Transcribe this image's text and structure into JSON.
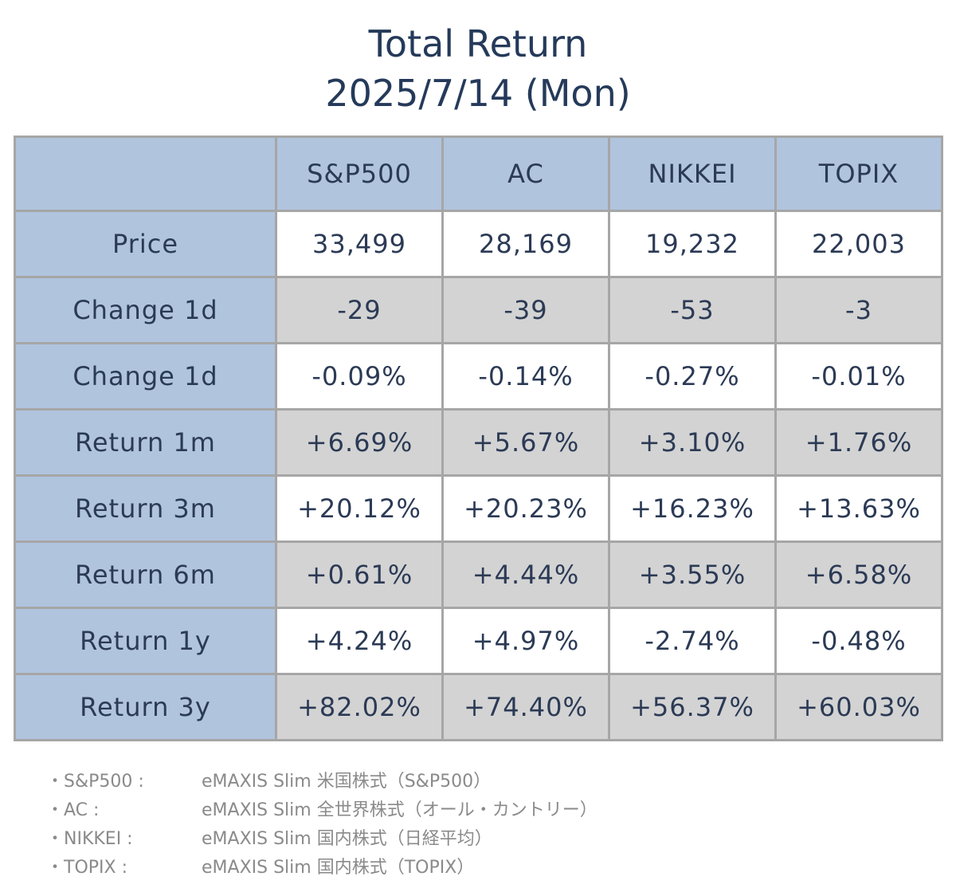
{
  "chart_data": {
    "type": "table",
    "title": "Total Return",
    "subtitle": "2025/7/14 (Mon)",
    "columns": [
      "",
      "S&P500",
      "AC",
      "NIKKEI",
      "TOPIX"
    ],
    "rows": [
      {
        "label": "Price",
        "values": [
          "33,499",
          "28,169",
          "19,232",
          "22,003"
        ]
      },
      {
        "label": "Change 1d",
        "values": [
          "-29",
          "-39",
          "-53",
          "-3"
        ]
      },
      {
        "label": "Change 1d",
        "values": [
          "-0.09%",
          "-0.14%",
          "-0.27%",
          "-0.01%"
        ]
      },
      {
        "label": "Return 1m",
        "values": [
          "+6.69%",
          "+5.67%",
          "+3.10%",
          "+1.76%"
        ]
      },
      {
        "label": "Return 3m",
        "values": [
          "+20.12%",
          "+20.23%",
          "+16.23%",
          "+13.63%"
        ]
      },
      {
        "label": "Return 6m",
        "values": [
          "+0.61%",
          "+4.44%",
          "+3.55%",
          "+6.58%"
        ]
      },
      {
        "label": "Return 1y",
        "values": [
          "+4.24%",
          "+4.97%",
          "-2.74%",
          "-0.48%"
        ]
      },
      {
        "label": "Return 3y",
        "values": [
          "+82.02%",
          "+74.40%",
          "+56.37%",
          "+60.03%"
        ]
      }
    ],
    "header_color": "#b0c4de",
    "row_colors": [
      "#ffffff",
      "#d3d3d3"
    ]
  },
  "notes": [
    {
      "label": "・S&P500 :",
      "desc": "eMAXIS Slim 米国株式（S&P500）"
    },
    {
      "label": "・AC :",
      "desc": "eMAXIS Slim 全世界株式（オール・カントリー）"
    },
    {
      "label": "・NIKKEI :",
      "desc": "eMAXIS Slim 国内株式（日経平均）"
    },
    {
      "label": "・TOPIX :",
      "desc": "eMAXIS Slim 国内株式（TOPIX）"
    }
  ]
}
